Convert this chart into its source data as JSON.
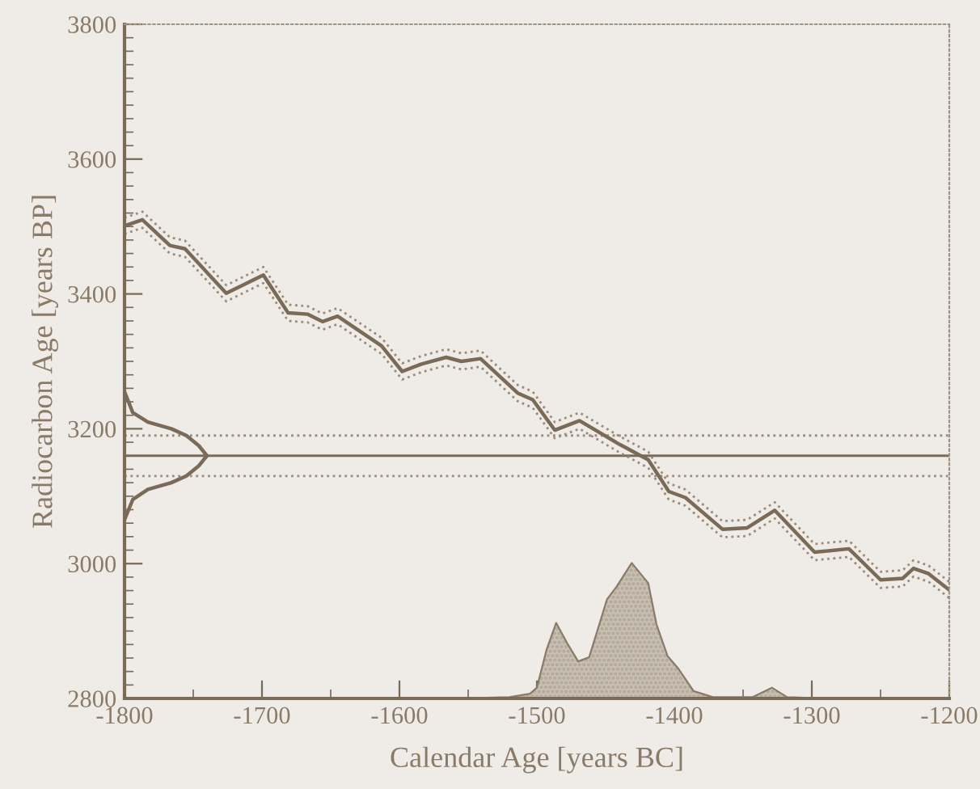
{
  "chart_data": {
    "type": "line",
    "xlabel": "Calendar Age [years BC]",
    "ylabel": "Radiocarbon Age [years BP]",
    "xlim": [
      -1800,
      -1200
    ],
    "xticks": [
      -1800,
      -1700,
      -1600,
      -1500,
      -1400,
      -1300,
      -1200
    ],
    "ylim": [
      2800,
      3800
    ],
    "yticks": [
      2800,
      3000,
      3200,
      3400,
      3600,
      3800
    ],
    "grid": false,
    "legend": false,
    "marker": "none",
    "series": [
      {
        "color": "#7a6a58",
        "line_style": "solid",
        "x": [
          -1800,
          -1787,
          -1767,
          -1756,
          -1726,
          -1699,
          -1681,
          -1667,
          -1656,
          -1645,
          -1613,
          -1598,
          -1584,
          -1566,
          -1555,
          -1541,
          -1514,
          -1503,
          -1487,
          -1469,
          -1440,
          -1419,
          -1404,
          -1392,
          -1365,
          -1347,
          -1327,
          -1298,
          -1273,
          -1250,
          -1234,
          -1226,
          -1215,
          -1200
        ],
        "values": [
          3501,
          3510,
          3472,
          3467,
          3401,
          3428,
          3372,
          3370,
          3359,
          3367,
          3323,
          3285,
          3296,
          3306,
          3300,
          3304,
          3253,
          3243,
          3198,
          3212,
          3177,
          3154,
          3107,
          3098,
          3051,
          3053,
          3079,
          3017,
          3022,
          2976,
          2978,
          2993,
          2985,
          2961
        ]
      },
      {
        "type": "line",
        "color": "#9a8c7c",
        "line_style": "dotted",
        "x": [
          -1800,
          -1787,
          -1767,
          -1756,
          -1726,
          -1699,
          -1681,
          -1667,
          -1656,
          -1645,
          -1613,
          -1598,
          -1584,
          -1566,
          -1555,
          -1541,
          -1514,
          -1503,
          -1487,
          -1469,
          -1440,
          -1419,
          -1404,
          -1392,
          -1365,
          -1347,
          -1327,
          -1298,
          -1273,
          -1250,
          -1234,
          -1226,
          -1215,
          -1200
        ],
        "values": [
          3513,
          3522,
          3484,
          3479,
          3413,
          3440,
          3384,
          3382,
          3371,
          3379,
          3335,
          3297,
          3308,
          3318,
          3312,
          3316,
          3265,
          3255,
          3210,
          3224,
          3189,
          3166,
          3119,
          3110,
          3063,
          3065,
          3091,
          3029,
          3034,
          2988,
          2990,
          3005,
          2997,
          2973
        ]
      },
      {
        "type": "line",
        "color": "#9a8c7c",
        "line_style": "dotted",
        "x": [
          -1800,
          -1787,
          -1767,
          -1756,
          -1726,
          -1699,
          -1681,
          -1667,
          -1656,
          -1645,
          -1613,
          -1598,
          -1584,
          -1566,
          -1555,
          -1541,
          -1514,
          -1503,
          -1487,
          -1469,
          -1440,
          -1419,
          -1404,
          -1392,
          -1365,
          -1347,
          -1327,
          -1298,
          -1273,
          -1250,
          -1234,
          -1226,
          -1215,
          -1200
        ],
        "values": [
          3489,
          3498,
          3460,
          3455,
          3389,
          3416,
          3360,
          3358,
          3347,
          3355,
          3311,
          3273,
          3284,
          3294,
          3288,
          3292,
          3241,
          3231,
          3186,
          3200,
          3165,
          3142,
          3095,
          3086,
          3039,
          3041,
          3067,
          3005,
          3010,
          2964,
          2966,
          2981,
          2973,
          2949
        ]
      },
      {
        "type": "line",
        "color": "#7a6a58",
        "line_style": "solid",
        "x": [
          -1800,
          -1794,
          -1783,
          -1766,
          -1755,
          -1746,
          -1740,
          -1746,
          -1755,
          -1766,
          -1783,
          -1794,
          -1800
        ],
        "values": [
          3255,
          3224,
          3210,
          3200,
          3190,
          3175,
          3160,
          3145,
          3130,
          3120,
          3110,
          3095,
          3065
        ]
      },
      {
        "type": "area",
        "color": "#c8bfb3",
        "x": [
          -1560,
          -1520,
          -1505,
          -1500,
          -1493,
          -1486,
          -1478,
          -1470,
          -1462,
          -1449,
          -1442,
          -1431,
          -1419,
          -1413,
          -1405,
          -1397,
          -1386,
          -1372,
          -1343,
          -1329,
          -1318,
          -1290
        ],
        "values": [
          2800,
          2802,
          2807,
          2816,
          2872,
          2912,
          2882,
          2855,
          2861,
          2947,
          2966,
          3001,
          2971,
          2910,
          2863,
          2844,
          2811,
          2802,
          2802,
          2816,
          2802,
          2800
        ]
      }
    ],
    "ref_lines": [
      {
        "axis": "y",
        "value": 3160,
        "color": "#7a6a58",
        "line_style": "solid"
      },
      {
        "axis": "y",
        "value": 3190,
        "color": "#9a8c7c",
        "line_style": "dotted"
      },
      {
        "axis": "y",
        "value": 3130,
        "color": "#9a8c7c",
        "line_style": "dotted"
      }
    ]
  }
}
